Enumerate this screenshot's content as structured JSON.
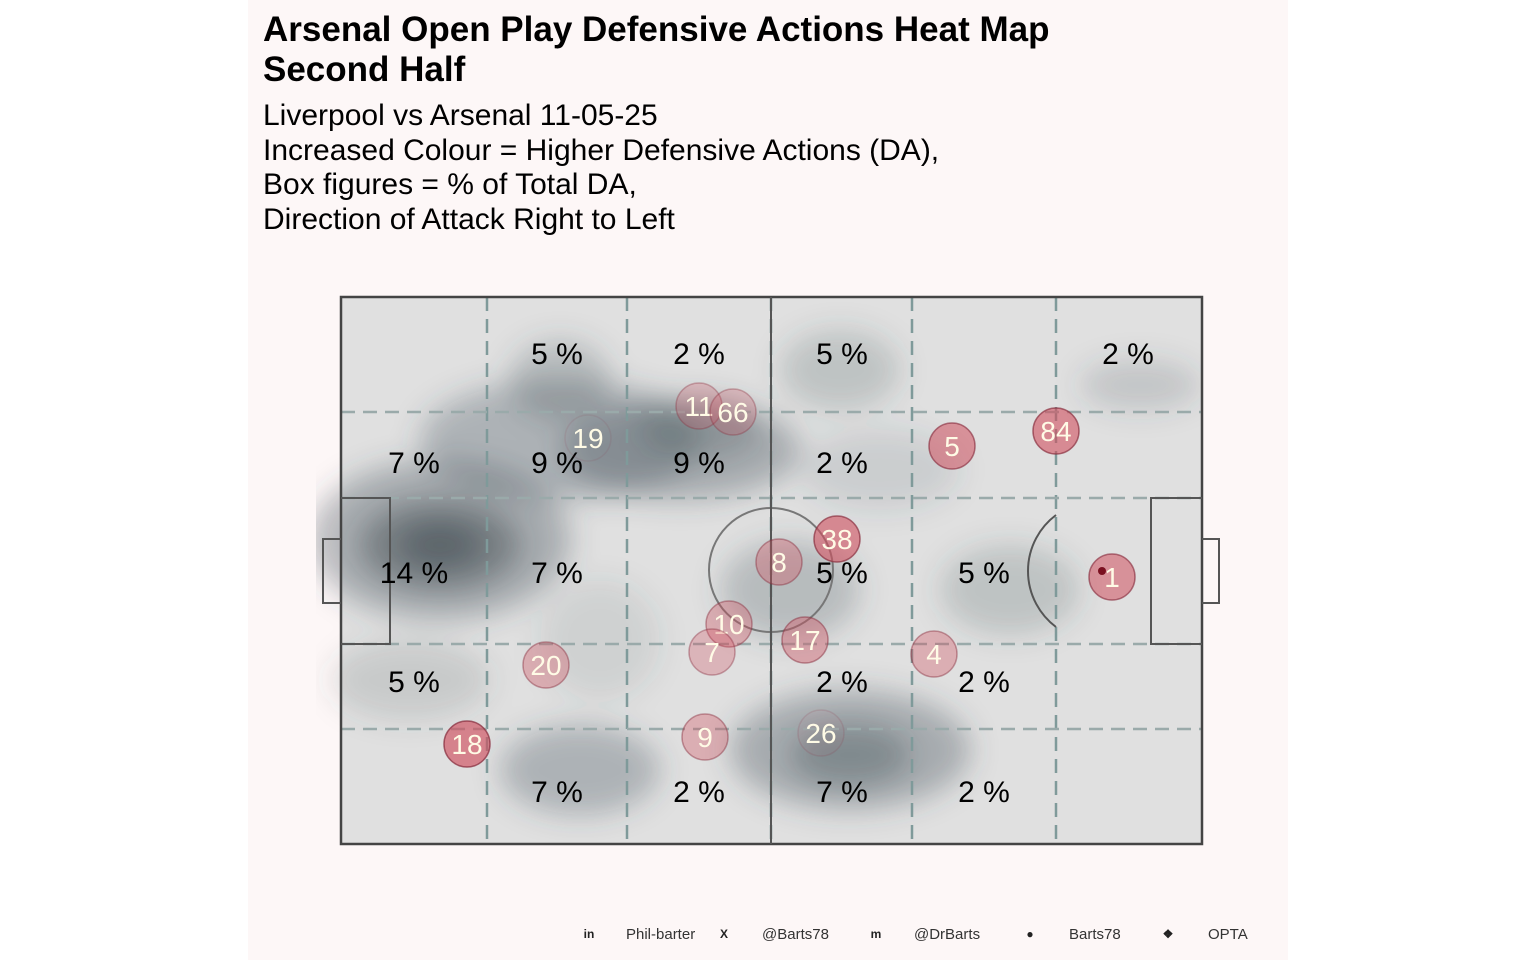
{
  "title": {
    "line1": "Arsenal  Open Play Defensive Actions Heat Map",
    "line2": "Second Half"
  },
  "subtitle": [
    "Liverpool vs Arsenal 11-05-25",
    "Increased Colour = Higher Defensive Actions (DA),",
    "Box figures = % of Total DA,",
    "Direction of Attack Right to Left"
  ],
  "footer": [
    {
      "icon": "linkedin-icon",
      "text": "Phil-barter"
    },
    {
      "icon": "x-icon",
      "text": "@Barts78"
    },
    {
      "icon": "mastodon-icon",
      "text": "@DrBarts"
    },
    {
      "icon": "github-icon",
      "text": "Barts78"
    },
    {
      "icon": "dropbox-icon",
      "text": "OPTA"
    }
  ],
  "colors": {
    "pitch": "#e0e0e0",
    "heat_dark": "#3d4a52",
    "player": "#d0505f",
    "grid": "#7f9a9a"
  },
  "chart_data": {
    "type": "heatmap",
    "grid_rows": 5,
    "grid_cols": 6,
    "zone_percent_labels": [
      [
        "",
        "5 %",
        "2 %",
        "5 %",
        "",
        "2 %"
      ],
      [
        "7 %",
        "9 %",
        "9 %",
        "2 %",
        "",
        ""
      ],
      [
        "14 %",
        "7 %",
        "",
        "5 %",
        "5 %",
        ""
      ],
      [
        "5 %",
        "",
        "",
        "2 %",
        "2 %",
        ""
      ],
      [
        "",
        "7 %",
        "2 %",
        "7 %",
        "2 %",
        ""
      ]
    ],
    "players": [
      "11",
      "66",
      "19",
      "5",
      "84",
      "38",
      "8",
      "1",
      "10",
      "17",
      "7",
      "4",
      "20",
      "18",
      "9",
      "26"
    ]
  }
}
